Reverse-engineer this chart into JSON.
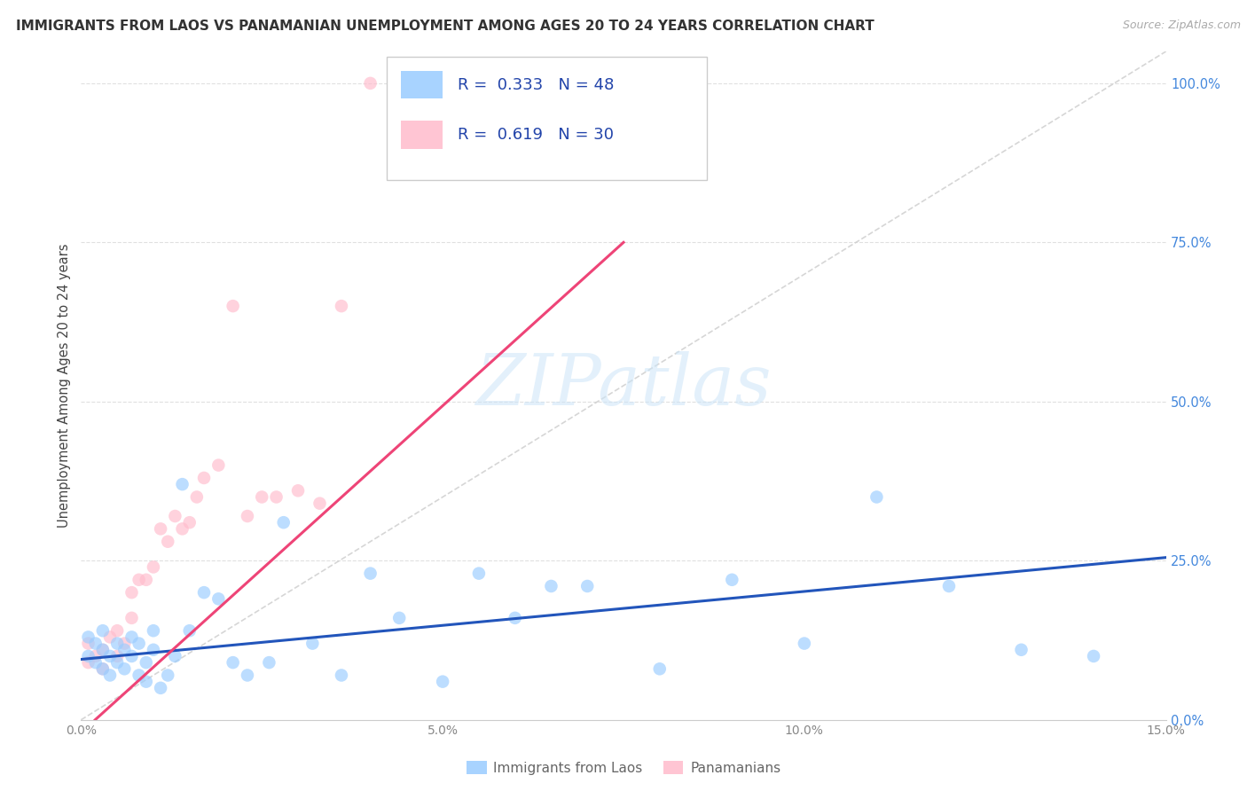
{
  "title": "IMMIGRANTS FROM LAOS VS PANAMANIAN UNEMPLOYMENT AMONG AGES 20 TO 24 YEARS CORRELATION CHART",
  "source": "Source: ZipAtlas.com",
  "ylabel": "Unemployment Among Ages 20 to 24 years",
  "xlim": [
    0.0,
    0.15
  ],
  "ylim": [
    0.0,
    1.05
  ],
  "xticks": [
    0.0,
    0.05,
    0.1,
    0.15
  ],
  "xticklabels": [
    "0.0%",
    "",
    "10.0%",
    "15.0%"
  ],
  "yticks_right": [
    0.0,
    0.25,
    0.5,
    0.75,
    1.0
  ],
  "yticklabels_right": [
    "0.0%",
    "25.0%",
    "50.0%",
    "75.0%",
    "100.0%"
  ],
  "grid_color": "#dddddd",
  "diagonal_color": "#cccccc",
  "blue_color": "#99ccff",
  "pink_color": "#ffbbcc",
  "blue_line_color": "#2255bb",
  "pink_line_color": "#ee4477",
  "legend_label1": "Immigrants from Laos",
  "legend_label2": "Panamanians",
  "R1": "0.333",
  "N1": "48",
  "R2": "0.619",
  "N2": "30",
  "blue_line_x0": 0.0,
  "blue_line_y0": 0.095,
  "blue_line_x1": 0.15,
  "blue_line_y1": 0.255,
  "pink_line_x0": 0.0,
  "pink_line_y0": -0.02,
  "pink_line_x1": 0.075,
  "pink_line_y1": 0.75,
  "blue_x": [
    0.001,
    0.001,
    0.002,
    0.002,
    0.003,
    0.003,
    0.003,
    0.004,
    0.004,
    0.005,
    0.005,
    0.006,
    0.006,
    0.007,
    0.007,
    0.008,
    0.008,
    0.009,
    0.009,
    0.01,
    0.01,
    0.011,
    0.012,
    0.013,
    0.014,
    0.015,
    0.017,
    0.019,
    0.021,
    0.023,
    0.026,
    0.028,
    0.032,
    0.036,
    0.04,
    0.044,
    0.05,
    0.055,
    0.06,
    0.065,
    0.07,
    0.08,
    0.09,
    0.1,
    0.11,
    0.12,
    0.13,
    0.14
  ],
  "blue_y": [
    0.1,
    0.13,
    0.09,
    0.12,
    0.11,
    0.08,
    0.14,
    0.1,
    0.07,
    0.12,
    0.09,
    0.08,
    0.11,
    0.13,
    0.1,
    0.07,
    0.12,
    0.09,
    0.06,
    0.11,
    0.14,
    0.05,
    0.07,
    0.1,
    0.37,
    0.14,
    0.2,
    0.19,
    0.09,
    0.07,
    0.09,
    0.31,
    0.12,
    0.07,
    0.23,
    0.16,
    0.06,
    0.23,
    0.16,
    0.21,
    0.21,
    0.08,
    0.22,
    0.12,
    0.35,
    0.21,
    0.11,
    0.1
  ],
  "pink_x": [
    0.001,
    0.001,
    0.002,
    0.003,
    0.003,
    0.004,
    0.005,
    0.005,
    0.006,
    0.007,
    0.007,
    0.008,
    0.009,
    0.01,
    0.011,
    0.012,
    0.013,
    0.014,
    0.015,
    0.016,
    0.017,
    0.019,
    0.021,
    0.023,
    0.025,
    0.027,
    0.03,
    0.033,
    0.036,
    0.04
  ],
  "pink_y": [
    0.09,
    0.12,
    0.1,
    0.11,
    0.08,
    0.13,
    0.1,
    0.14,
    0.12,
    0.16,
    0.2,
    0.22,
    0.22,
    0.24,
    0.3,
    0.28,
    0.32,
    0.3,
    0.31,
    0.35,
    0.38,
    0.4,
    0.65,
    0.32,
    0.35,
    0.35,
    0.36,
    0.34,
    0.65,
    1.0
  ]
}
